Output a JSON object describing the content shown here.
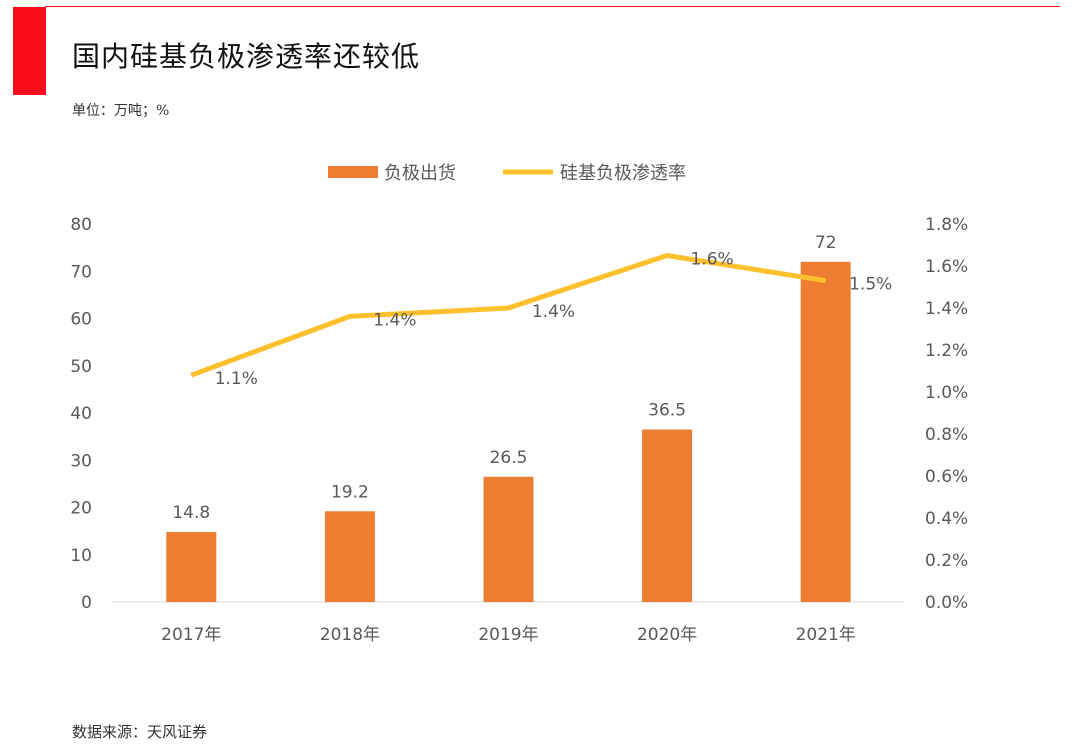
{
  "header": {
    "title": "国内硅基负极渗透率还较低",
    "unit": "单位：万吨；%"
  },
  "footer": {
    "source": "数据来源：天风证券"
  },
  "colors": {
    "bar": "#ed7d31",
    "line": "#ffc02e",
    "accent": "#fd0d1b"
  },
  "chart_data": {
    "type": "bar+line",
    "categories": [
      "2017年",
      "2018年",
      "2019年",
      "2020年",
      "2021年"
    ],
    "series": [
      {
        "name": "负极出货",
        "type": "bar",
        "axis": "left",
        "values": [
          14.8,
          19.2,
          26.5,
          36.5,
          72
        ],
        "labels": [
          "14.8",
          "19.2",
          "26.5",
          "36.5",
          "72"
        ]
      },
      {
        "name": "硅基负极渗透率",
        "type": "line",
        "axis": "right",
        "values": [
          1.08,
          1.36,
          1.4,
          1.65,
          1.53
        ],
        "labels": [
          "1.1%",
          "1.4%",
          "1.4%",
          "1.6%",
          "1.5%"
        ]
      }
    ],
    "left_axis": {
      "range": [
        0,
        80
      ],
      "ticks": [
        "0",
        "10",
        "20",
        "30",
        "40",
        "50",
        "60",
        "70",
        "80"
      ]
    },
    "right_axis": {
      "range": [
        0,
        1.8
      ],
      "ticks": [
        "0.0%",
        "0.2%",
        "0.4%",
        "0.6%",
        "0.8%",
        "1.0%",
        "1.2%",
        "1.4%",
        "1.6%",
        "1.8%"
      ]
    },
    "legend": "top-center",
    "grid": false
  }
}
